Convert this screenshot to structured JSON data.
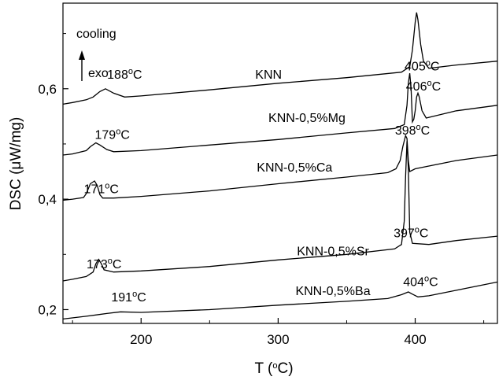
{
  "chart_data": {
    "type": "line",
    "xlabel": "T (°C)",
    "ylabel": "DSC (μW/mg)",
    "xlim": [
      143,
      460
    ],
    "ylim": [
      0.175,
      0.755
    ],
    "x_ticks": [
      {
        "value": 200,
        "label": "200"
      },
      {
        "value": 300,
        "label": "300"
      },
      {
        "value": 400,
        "label": "400"
      }
    ],
    "y_ticks": [
      {
        "value": 0.2,
        "label": "0,2"
      },
      {
        "value": 0.4,
        "label": "0,4"
      },
      {
        "value": 0.6,
        "label": "0,6"
      }
    ],
    "legend_note": {
      "line1": "cooling",
      "line2": "exo"
    },
    "series": [
      {
        "name": "KNN",
        "points": [
          [
            143,
            0.572
          ],
          [
            150,
            0.575
          ],
          [
            160,
            0.58
          ],
          [
            165,
            0.585
          ],
          [
            170,
            0.595
          ],
          [
            174,
            0.6
          ],
          [
            180,
            0.592
          ],
          [
            188,
            0.585
          ],
          [
            200,
            0.587
          ],
          [
            250,
            0.598
          ],
          [
            300,
            0.61
          ],
          [
            350,
            0.62
          ],
          [
            390,
            0.63
          ],
          [
            396,
            0.64
          ],
          [
            398,
            0.67
          ],
          [
            400,
            0.72
          ],
          [
            401,
            0.738
          ],
          [
            402,
            0.725
          ],
          [
            404,
            0.68
          ],
          [
            406,
            0.65
          ],
          [
            410,
            0.637
          ],
          [
            430,
            0.643
          ],
          [
            460,
            0.65
          ]
        ],
        "peak_labels": [
          {
            "x": 188,
            "y": 0.618,
            "text": "188°C"
          },
          {
            "x": 405,
            "y": 0.633,
            "text": "405°C"
          }
        ]
      },
      {
        "name": "KNN-0,5%Mg",
        "points": [
          [
            143,
            0.48
          ],
          [
            150,
            0.482
          ],
          [
            160,
            0.488
          ],
          [
            163,
            0.495
          ],
          [
            167,
            0.502
          ],
          [
            170,
            0.498
          ],
          [
            175,
            0.49
          ],
          [
            180,
            0.486
          ],
          [
            200,
            0.488
          ],
          [
            250,
            0.498
          ],
          [
            300,
            0.508
          ],
          [
            350,
            0.52
          ],
          [
            385,
            0.528
          ],
          [
            392,
            0.535
          ],
          [
            394,
            0.57
          ],
          [
            395,
            0.61
          ],
          [
            396,
            0.628
          ],
          [
            397,
            0.6
          ],
          [
            398,
            0.54
          ],
          [
            399,
            0.545
          ],
          [
            400,
            0.56
          ],
          [
            401,
            0.585
          ],
          [
            402,
            0.592
          ],
          [
            403,
            0.585
          ],
          [
            405,
            0.56
          ],
          [
            408,
            0.547
          ],
          [
            430,
            0.56
          ],
          [
            460,
            0.57
          ]
        ],
        "peak_labels": [
          {
            "x": 179,
            "y": 0.509,
            "text": "179°C"
          },
          {
            "x": 406,
            "y": 0.597,
            "text": "406°C"
          }
        ]
      },
      {
        "name": "KNN-0,5%Ca",
        "points": [
          [
            143,
            0.398
          ],
          [
            150,
            0.4
          ],
          [
            158,
            0.403
          ],
          [
            160,
            0.41
          ],
          [
            163,
            0.428
          ],
          [
            166,
            0.433
          ],
          [
            168,
            0.425
          ],
          [
            170,
            0.408
          ],
          [
            172,
            0.402
          ],
          [
            180,
            0.402
          ],
          [
            200,
            0.405
          ],
          [
            250,
            0.415
          ],
          [
            300,
            0.428
          ],
          [
            350,
            0.44
          ],
          [
            380,
            0.448
          ],
          [
            386,
            0.455
          ],
          [
            389,
            0.47
          ],
          [
            391,
            0.495
          ],
          [
            393,
            0.515
          ],
          [
            394,
            0.51
          ],
          [
            395,
            0.47
          ],
          [
            396,
            0.45
          ],
          [
            400,
            0.455
          ],
          [
            430,
            0.47
          ],
          [
            460,
            0.48
          ]
        ],
        "peak_labels": [
          {
            "x": 171,
            "y": 0.411,
            "text": "171°C"
          },
          {
            "x": 398,
            "y": 0.517,
            "text": "398°C"
          }
        ]
      },
      {
        "name": "KNN-0,5%Sr",
        "points": [
          [
            143,
            0.252
          ],
          [
            150,
            0.255
          ],
          [
            160,
            0.26
          ],
          [
            165,
            0.268
          ],
          [
            167,
            0.283
          ],
          [
            169,
            0.291
          ],
          [
            171,
            0.283
          ],
          [
            173,
            0.272
          ],
          [
            180,
            0.268
          ],
          [
            200,
            0.27
          ],
          [
            250,
            0.278
          ],
          [
            300,
            0.29
          ],
          [
            350,
            0.3
          ],
          [
            385,
            0.31
          ],
          [
            390,
            0.318
          ],
          [
            392,
            0.36
          ],
          [
            393,
            0.44
          ],
          [
            394,
            0.505
          ],
          [
            395,
            0.455
          ],
          [
            396,
            0.34
          ],
          [
            398,
            0.32
          ],
          [
            410,
            0.318
          ],
          [
            430,
            0.325
          ],
          [
            460,
            0.333
          ]
        ],
        "peak_labels": [
          {
            "x": 173,
            "y": 0.275,
            "text": "173°C"
          },
          {
            "x": 397,
            "y": 0.331,
            "text": "397°C"
          }
        ]
      },
      {
        "name": "KNN-0,5%Ba",
        "points": [
          [
            143,
            0.183
          ],
          [
            160,
            0.188
          ],
          [
            175,
            0.193
          ],
          [
            185,
            0.196
          ],
          [
            200,
            0.195
          ],
          [
            250,
            0.2
          ],
          [
            300,
            0.208
          ],
          [
            350,
            0.215
          ],
          [
            380,
            0.22
          ],
          [
            390,
            0.227
          ],
          [
            395,
            0.232
          ],
          [
            398,
            0.228
          ],
          [
            402,
            0.223
          ],
          [
            410,
            0.225
          ],
          [
            430,
            0.235
          ],
          [
            460,
            0.25
          ]
        ],
        "peak_labels": [
          {
            "x": 191,
            "y": 0.215,
            "text": "191°C"
          },
          {
            "x": 404,
            "y": 0.243,
            "text": "404°C"
          }
        ]
      }
    ]
  }
}
